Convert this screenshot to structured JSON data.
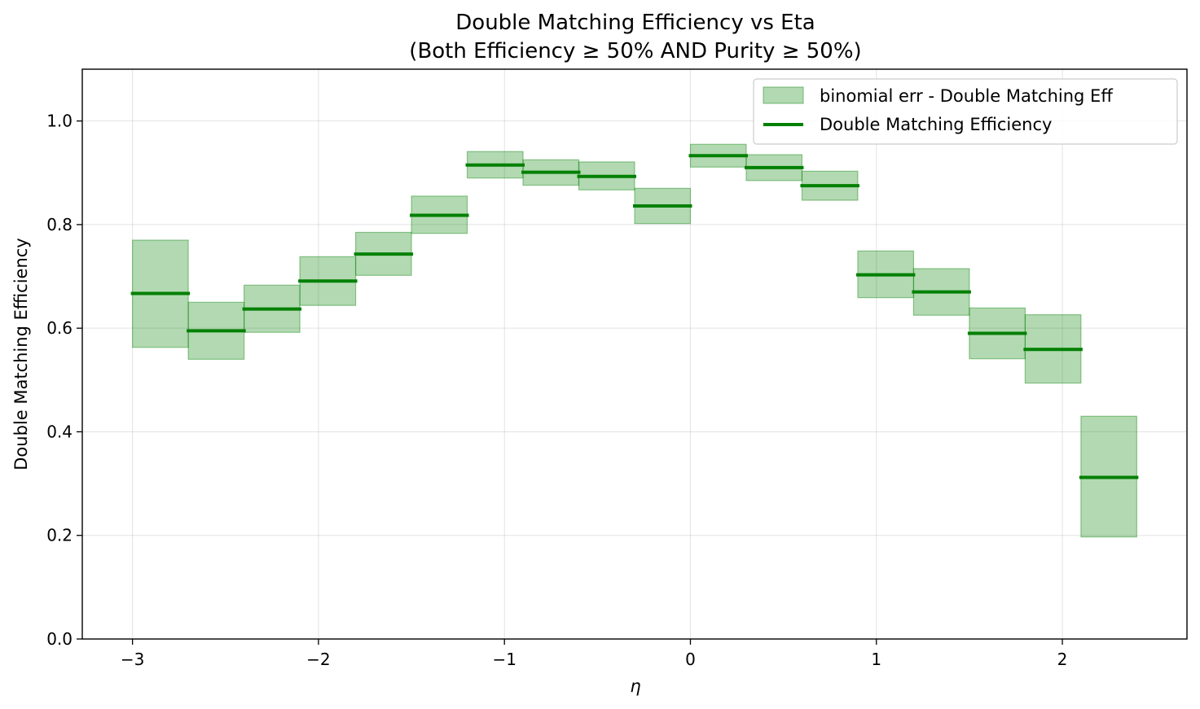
{
  "chart_data": {
    "type": "bar",
    "title": "Double Matching Efficiency vs Eta",
    "subtitle": "(Both Efficiency ≥ 50% AND Purity ≥ 50%)",
    "xlabel": "η",
    "ylabel": "Double Matching Efficiency",
    "xlim": [
      -3.27,
      2.67
    ],
    "ylim": [
      0.0,
      1.1
    ],
    "xticks": [
      -3,
      -2,
      -1,
      0,
      1,
      2
    ],
    "xtick_labels": [
      "−3",
      "−2",
      "−1",
      "0",
      "1",
      "2"
    ],
    "yticks": [
      0.0,
      0.2,
      0.4,
      0.6,
      0.8,
      1.0
    ],
    "ytick_labels": [
      "0.0",
      "0.2",
      "0.4",
      "0.6",
      "0.8",
      "1.0"
    ],
    "grid": true,
    "legend_position": "top-right",
    "bin_edges": [
      -3.0,
      -2.7,
      -2.4,
      -2.1,
      -1.8,
      -1.5,
      -1.2,
      -0.9,
      -0.6,
      -0.3,
      0.0,
      0.3,
      0.6,
      0.9,
      1.2,
      1.5,
      1.8,
      2.1,
      2.4
    ],
    "series": [
      {
        "name": "Double Matching Efficiency",
        "kind": "step-line",
        "color": "#008000",
        "values": [
          0.667,
          0.595,
          0.637,
          0.691,
          0.743,
          0.818,
          0.915,
          0.901,
          0.893,
          0.836,
          0.933,
          0.91,
          0.875,
          0.703,
          0.67,
          0.59,
          0.559,
          0.312
        ]
      },
      {
        "name": "binomial err - Double Matching Eff",
        "kind": "error-band",
        "color": "#008000",
        "lower": [
          0.563,
          0.54,
          0.592,
          0.644,
          0.702,
          0.783,
          0.89,
          0.876,
          0.867,
          0.802,
          0.911,
          0.885,
          0.847,
          0.659,
          0.625,
          0.541,
          0.494,
          0.197
        ],
        "upper": [
          0.77,
          0.65,
          0.683,
          0.738,
          0.785,
          0.855,
          0.941,
          0.925,
          0.921,
          0.87,
          0.955,
          0.935,
          0.903,
          0.749,
          0.715,
          0.639,
          0.626,
          0.43
        ]
      }
    ]
  }
}
